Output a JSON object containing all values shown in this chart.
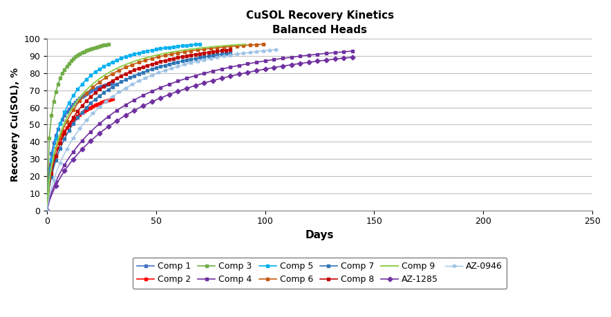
{
  "title": "CuSOL Recovery Kinetics\nBalanced Heads",
  "xlabel": "Days",
  "ylabel": "Recovery Cu(SOL), %",
  "xlim": [
    0,
    250
  ],
  "ylim": [
    0,
    100
  ],
  "xticks": [
    0,
    50,
    100,
    150,
    200,
    250
  ],
  "yticks": [
    0,
    10,
    20,
    30,
    40,
    50,
    60,
    70,
    80,
    90,
    100
  ],
  "series": [
    {
      "label": "Comp 1",
      "color": "#4472C4",
      "marker": "s",
      "markersize": 3.5,
      "linewidth": 1.2,
      "max_recovery": 83.0,
      "rate": 0.18,
      "days": 30
    },
    {
      "label": "Comp 2",
      "color": "#FF0000",
      "marker": "s",
      "markersize": 3.5,
      "linewidth": 1.2,
      "max_recovery": 76.0,
      "rate": 0.16,
      "days": 30
    },
    {
      "label": "Comp 3",
      "color": "#70AD47",
      "marker": "s",
      "markersize": 3.5,
      "linewidth": 1.2,
      "max_recovery": 100.0,
      "rate": 0.28,
      "days": 28
    },
    {
      "label": "Comp 4",
      "color": "#7030A0",
      "marker": "s",
      "markersize": 3.5,
      "linewidth": 1.2,
      "max_recovery": 100.0,
      "rate": 0.045,
      "days": 140
    },
    {
      "label": "Comp 5",
      "color": "#00B0F0",
      "marker": "s",
      "markersize": 3.5,
      "linewidth": 1.2,
      "max_recovery": 100.0,
      "rate": 0.1,
      "days": 70
    },
    {
      "label": "Comp 6",
      "color": "#C55A11",
      "marker": "s",
      "markersize": 3.5,
      "linewidth": 1.2,
      "max_recovery": 100.0,
      "rate": 0.08,
      "days": 100
    },
    {
      "label": "Comp 7",
      "color": "#2E75B6",
      "marker": "s",
      "markersize": 3.5,
      "linewidth": 1.2,
      "max_recovery": 100.0,
      "rate": 0.065,
      "days": 84
    },
    {
      "label": "Comp 8",
      "color": "#C00000",
      "marker": "s",
      "markersize": 3.5,
      "linewidth": 1.2,
      "max_recovery": 100.0,
      "rate": 0.072,
      "days": 84
    },
    {
      "label": "Comp 9",
      "color": "#92D050",
      "marker": "",
      "markersize": 3.5,
      "linewidth": 1.5,
      "max_recovery": 100.0,
      "rate": 0.085,
      "days": 91
    },
    {
      "label": "AZ-1285",
      "color": "#7030A0",
      "marker": "D",
      "markersize": 3.5,
      "linewidth": 1.2,
      "max_recovery": 100.0,
      "rate": 0.04,
      "days": 140
    },
    {
      "label": "AZ-0946",
      "color": "#9DC3E6",
      "marker": "*",
      "markersize": 4,
      "linewidth": 1.0,
      "max_recovery": 100.0,
      "rate": 0.055,
      "days": 105
    }
  ],
  "background_color": "#FFFFFF",
  "grid_color": "#C0C0C0"
}
